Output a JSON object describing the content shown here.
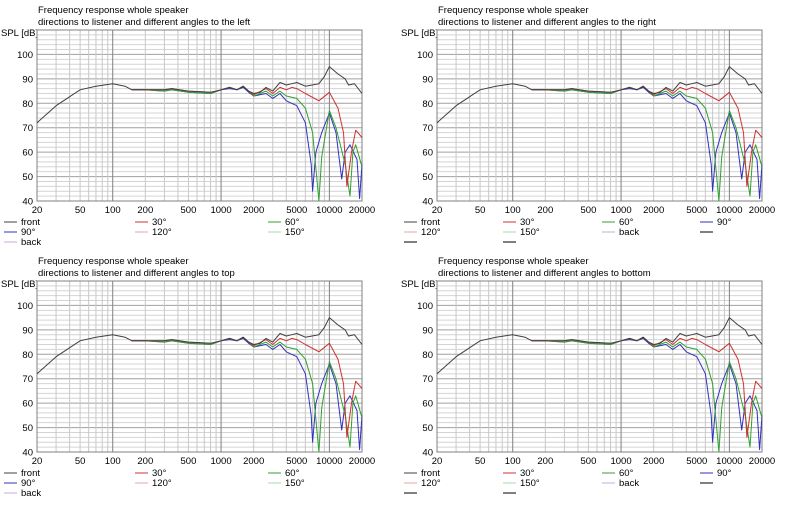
{
  "chart_data": {
    "type": "line",
    "xscale": "log",
    "xlim": [
      20,
      20000
    ],
    "ylim": [
      40,
      110
    ],
    "ylabel": "SPL [dB]",
    "xticks": [
      20,
      50,
      100,
      200,
      500,
      1000,
      2000,
      5000,
      10000,
      20000
    ],
    "xtick_labels": [
      "20",
      "50",
      "100",
      "200",
      "500",
      "1000",
      "2000",
      "5000",
      "10000",
      "20000"
    ],
    "yticks": [
      40,
      50,
      60,
      70,
      80,
      90,
      100
    ],
    "ytick_labels": [
      "40",
      "50",
      "60",
      "70",
      "80",
      "90",
      "100"
    ],
    "grid": true,
    "series": [
      {
        "name": "front",
        "color": "#404040",
        "points": [
          [
            20,
            72
          ],
          [
            30,
            79
          ],
          [
            50,
            85.5
          ],
          [
            70,
            87
          ],
          [
            100,
            88
          ],
          [
            130,
            87
          ],
          [
            150,
            85.5
          ],
          [
            200,
            85.5
          ],
          [
            300,
            85.5
          ],
          [
            350,
            86
          ],
          [
            500,
            85
          ],
          [
            800,
            84.5
          ],
          [
            1000,
            85.5
          ],
          [
            1200,
            86.5
          ],
          [
            1400,
            85.5
          ],
          [
            1600,
            87
          ],
          [
            1800,
            85
          ],
          [
            2000,
            84
          ],
          [
            2300,
            84.5
          ],
          [
            2600,
            86.5
          ],
          [
            3000,
            85
          ],
          [
            3500,
            88.5
          ],
          [
            4000,
            87.5
          ],
          [
            4500,
            88
          ],
          [
            5000,
            88.5
          ],
          [
            6000,
            87
          ],
          [
            8000,
            88
          ],
          [
            9000,
            91
          ],
          [
            10000,
            95
          ],
          [
            12000,
            92
          ],
          [
            14000,
            90
          ],
          [
            15000,
            87.5
          ],
          [
            17000,
            88
          ],
          [
            20000,
            84
          ]
        ]
      },
      {
        "name": "30°",
        "color": "#d03030",
        "points": [
          [
            150,
            85.5
          ],
          [
            200,
            85.5
          ],
          [
            300,
            85.5
          ],
          [
            350,
            86
          ],
          [
            500,
            85
          ],
          [
            800,
            84.5
          ],
          [
            1000,
            85.5
          ],
          [
            1200,
            86.5
          ],
          [
            1400,
            85.5
          ],
          [
            1600,
            87
          ],
          [
            1800,
            85
          ],
          [
            2000,
            83.5
          ],
          [
            2600,
            86
          ],
          [
            3000,
            84
          ],
          [
            3500,
            86.5
          ],
          [
            4000,
            85.5
          ],
          [
            4500,
            86.5
          ],
          [
            5000,
            86
          ],
          [
            6000,
            84
          ],
          [
            8000,
            81
          ],
          [
            10000,
            84.5
          ],
          [
            12000,
            78
          ],
          [
            13500,
            68
          ],
          [
            14500,
            46
          ],
          [
            16000,
            60
          ],
          [
            17500,
            69
          ],
          [
            20000,
            66
          ]
        ]
      },
      {
        "name": "60°",
        "color": "#30a030",
        "points": [
          [
            150,
            85.5
          ],
          [
            200,
            85.5
          ],
          [
            300,
            85
          ],
          [
            350,
            85.5
          ],
          [
            500,
            84.5
          ],
          [
            800,
            84
          ],
          [
            1000,
            85.5
          ],
          [
            1200,
            86.5
          ],
          [
            1400,
            85.5
          ],
          [
            1600,
            87
          ],
          [
            1800,
            85
          ],
          [
            2000,
            83
          ],
          [
            2600,
            85
          ],
          [
            3000,
            83
          ],
          [
            3500,
            85
          ],
          [
            4000,
            83
          ],
          [
            5000,
            82
          ],
          [
            6000,
            78
          ],
          [
            7000,
            68
          ],
          [
            8000,
            40
          ],
          [
            8500,
            58
          ],
          [
            10000,
            77
          ],
          [
            11500,
            70
          ],
          [
            14000,
            55
          ],
          [
            15500,
            42
          ],
          [
            16500,
            60
          ],
          [
            17500,
            63
          ],
          [
            20000,
            54
          ]
        ]
      },
      {
        "name": "90°",
        "color": "#3030c0",
        "points": [
          [
            150,
            85.5
          ],
          [
            200,
            85.5
          ],
          [
            300,
            85
          ],
          [
            350,
            85.5
          ],
          [
            500,
            84.5
          ],
          [
            800,
            84
          ],
          [
            1000,
            85.5
          ],
          [
            1200,
            86
          ],
          [
            1400,
            85.5
          ],
          [
            1600,
            86.5
          ],
          [
            1800,
            84.5
          ],
          [
            2000,
            83
          ],
          [
            2600,
            84
          ],
          [
            3000,
            82
          ],
          [
            3500,
            84
          ],
          [
            4000,
            81
          ],
          [
            5000,
            79
          ],
          [
            6000,
            72
          ],
          [
            6800,
            55
          ],
          [
            7000,
            44
          ],
          [
            7500,
            60
          ],
          [
            8500,
            68
          ],
          [
            10000,
            76
          ],
          [
            11500,
            68
          ],
          [
            13000,
            49
          ],
          [
            14000,
            60
          ],
          [
            15500,
            63
          ],
          [
            18000,
            57
          ],
          [
            19000,
            41
          ],
          [
            20000,
            55
          ]
        ]
      },
      {
        "name": "120°",
        "color": "#e0a8a8",
        "points": []
      },
      {
        "name": "150°",
        "color": "#a8d8a8",
        "points": []
      },
      {
        "name": "back",
        "color": "#c8a8d8",
        "points": []
      },
      {
        "name": "",
        "color": "#000000",
        "points": []
      }
    ],
    "panels": [
      {
        "title": "Frequency response whole speaker",
        "subtitle": "directions to listener and different angles to the left",
        "legend_columns": [
          [
            "front",
            "90°",
            "back"
          ],
          [
            "30°",
            "120°"
          ],
          [
            "60°",
            "150°"
          ]
        ]
      },
      {
        "title": "Frequency response whole speaker",
        "subtitle": "directions to listener and different angles to the right",
        "legend_columns": [
          [
            "front",
            "120°",
            ""
          ],
          [
            "30°",
            "150°",
            ""
          ],
          [
            "60°",
            "back"
          ],
          [
            "90°",
            ""
          ]
        ]
      },
      {
        "title": "Frequency response whole speaker",
        "subtitle": "directions to listener and different angles to top",
        "legend_columns": [
          [
            "front",
            "90°",
            "back"
          ],
          [
            "30°",
            "120°"
          ],
          [
            "60°",
            "150°"
          ]
        ]
      },
      {
        "title": "Frequency response whole speaker",
        "subtitle": "directions to listener and different angles to bottom",
        "legend_columns": [
          [
            "front",
            "120°",
            ""
          ],
          [
            "30°",
            "150°",
            ""
          ],
          [
            "60°",
            "back"
          ],
          [
            "90°",
            ""
          ]
        ]
      }
    ]
  }
}
